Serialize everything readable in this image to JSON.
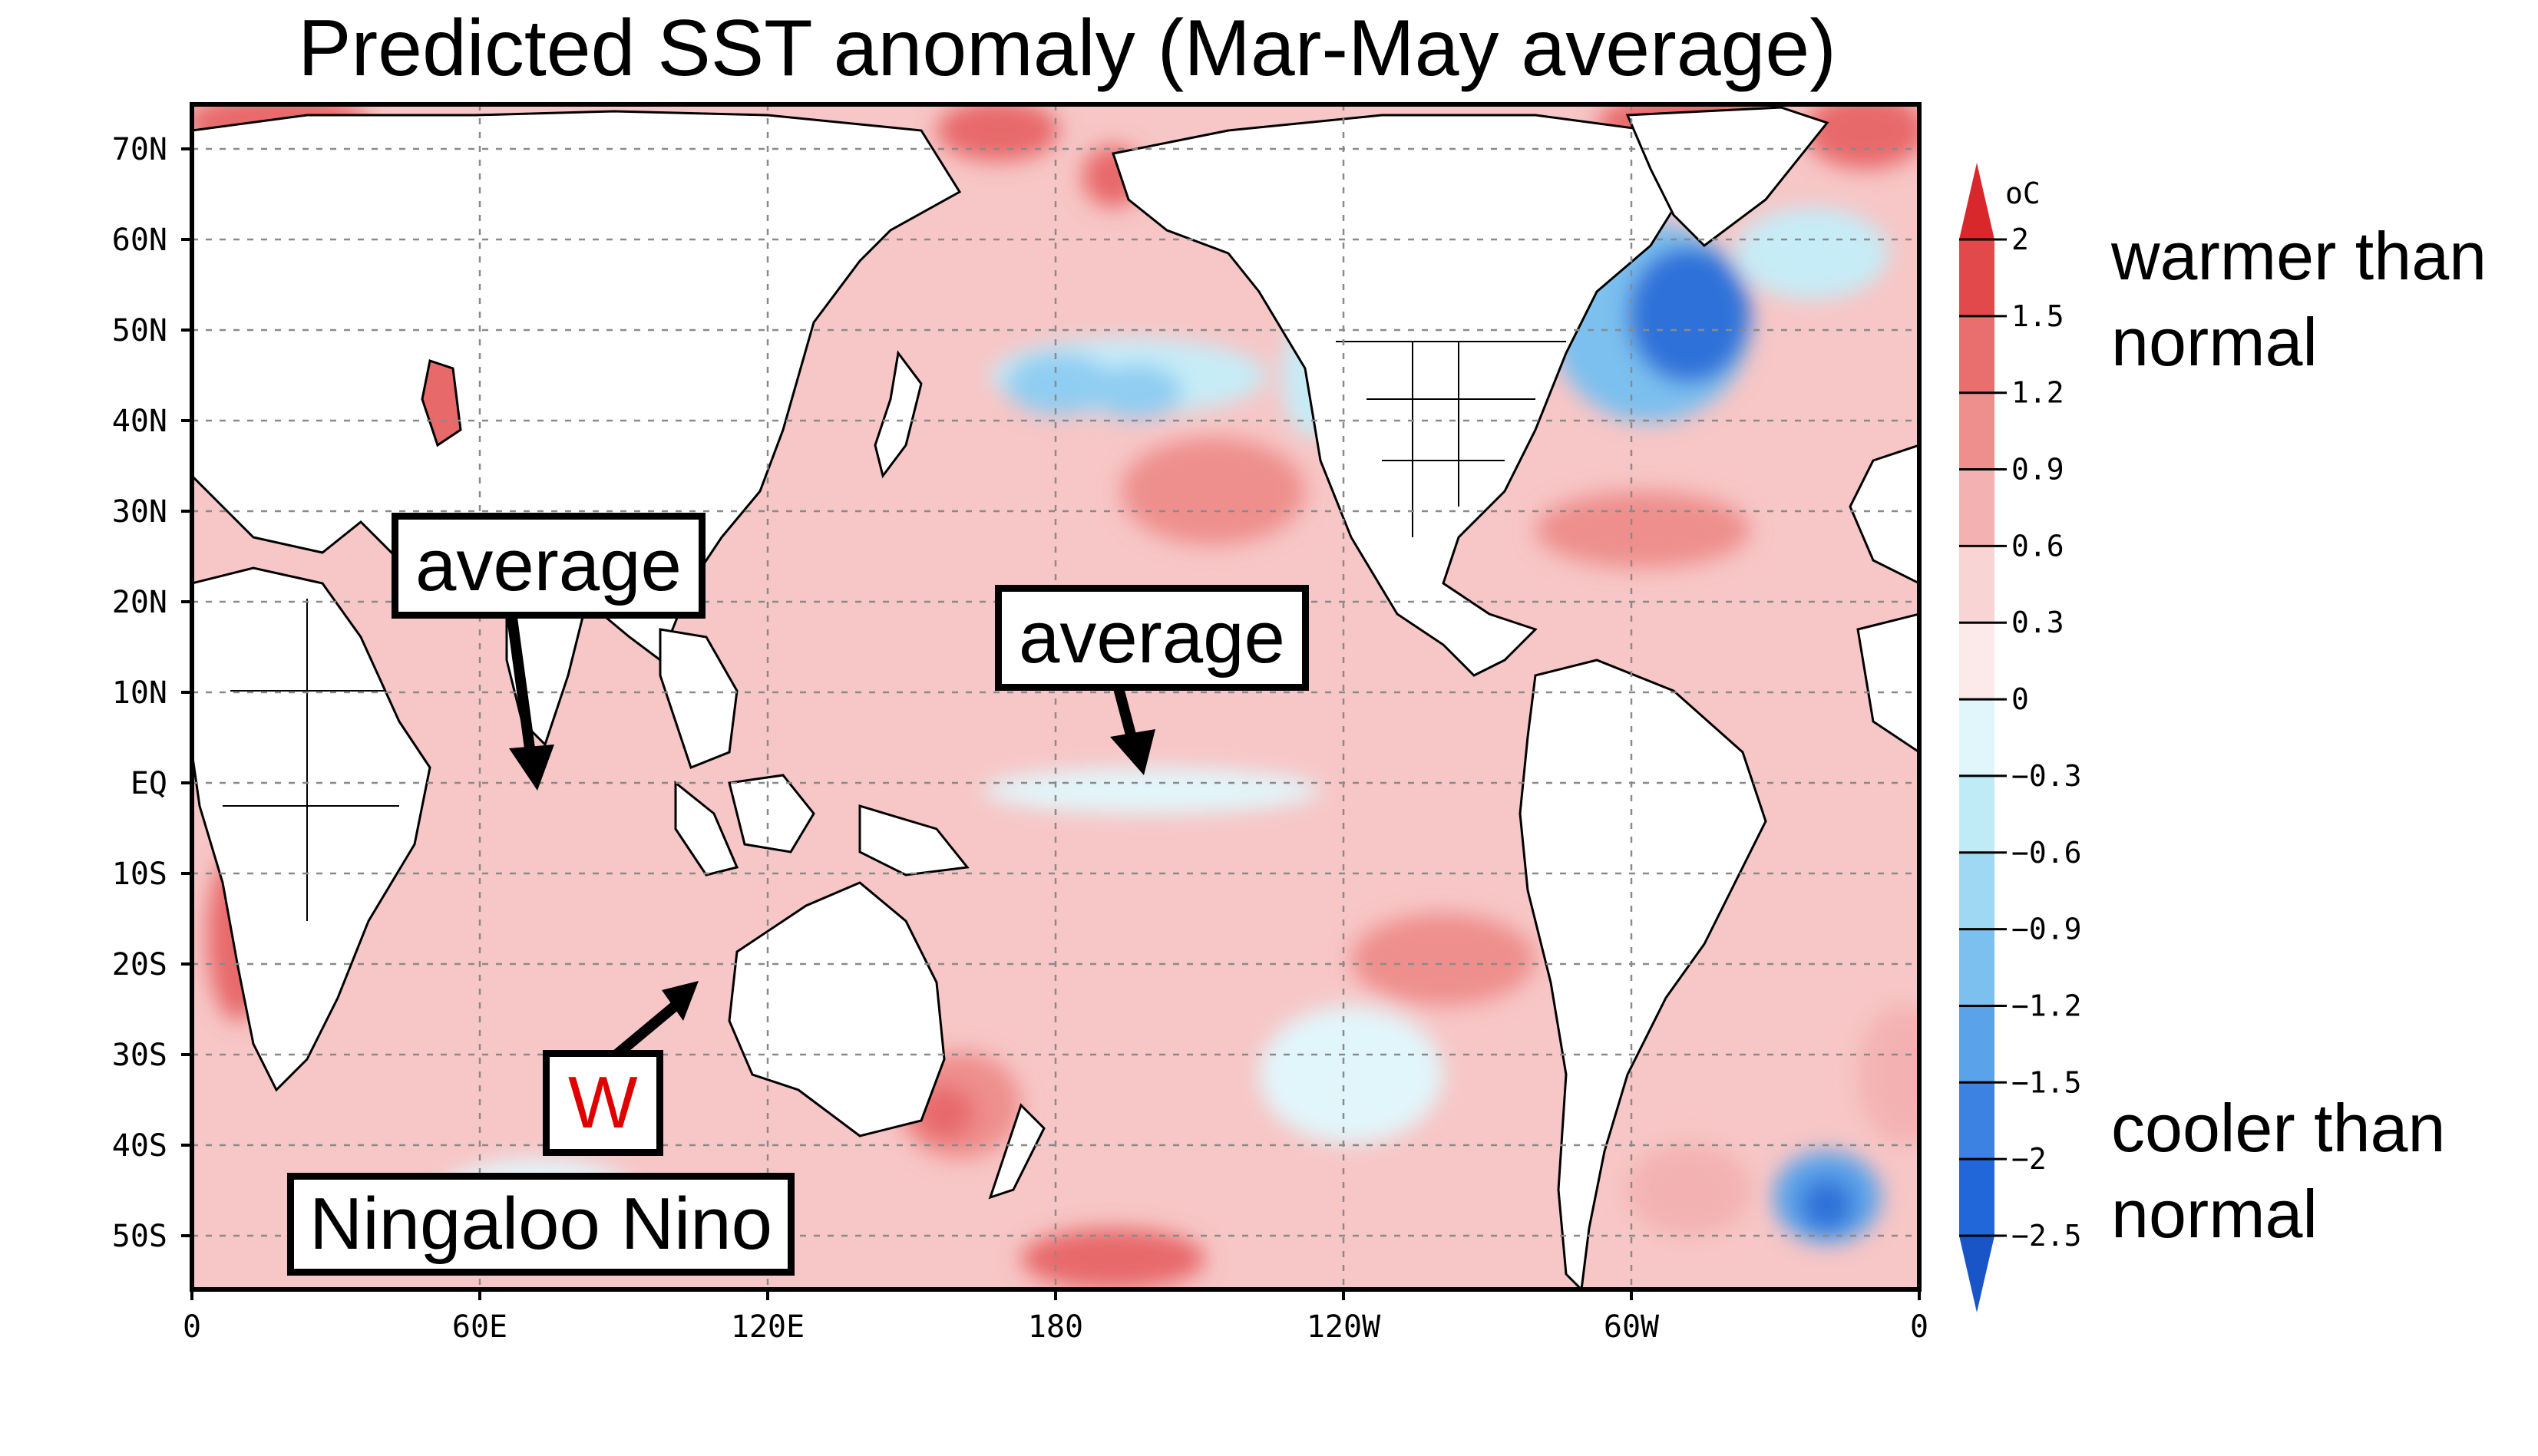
{
  "title": "Predicted SST anomaly (Mar-May average)",
  "axes": {
    "lat_ticks": [
      "70N",
      "60N",
      "50N",
      "40N",
      "30N",
      "20N",
      "10N",
      "EQ",
      "10S",
      "20S",
      "30S",
      "40S",
      "50S"
    ],
    "lon_ticks": [
      "0",
      "60E",
      "120E",
      "180",
      "120W",
      "60W",
      "0"
    ]
  },
  "colorbar": {
    "unit": "oC",
    "labels": [
      "2",
      "1.5",
      "1.2",
      "0.9",
      "0.6",
      "0.3",
      "0",
      "−0.3",
      "−0.6",
      "−0.9",
      "−1.2",
      "−1.5",
      "−2",
      "−2.5"
    ],
    "colors": [
      "#d9282b",
      "#e2494a",
      "#e86f6e",
      "#ee8f8d",
      "#f3b2b1",
      "#f9d4d4",
      "#fce9e9",
      "#e1f6fb",
      "#bfebf7",
      "#9ed8f3",
      "#7cc0ef",
      "#5aa3ea",
      "#3c82e2",
      "#2267d9",
      "#1a55c8"
    ]
  },
  "annotations": {
    "average_1": "average",
    "average_2": "average",
    "w": "W",
    "ningaloo": "Ningaloo Nino"
  },
  "side_labels": {
    "warmer_line1": "warmer than",
    "warmer_line2": "normal",
    "cooler_line1": "cooler than",
    "cooler_line2": "normal"
  },
  "colors": {
    "ocean_base": "#f7c6c6",
    "warm_strong": "#e8696a",
    "cool": "#c6ecf7",
    "cool_strong": "#3c82e2",
    "land": "#ffffff",
    "warm_label": "#e00000"
  }
}
